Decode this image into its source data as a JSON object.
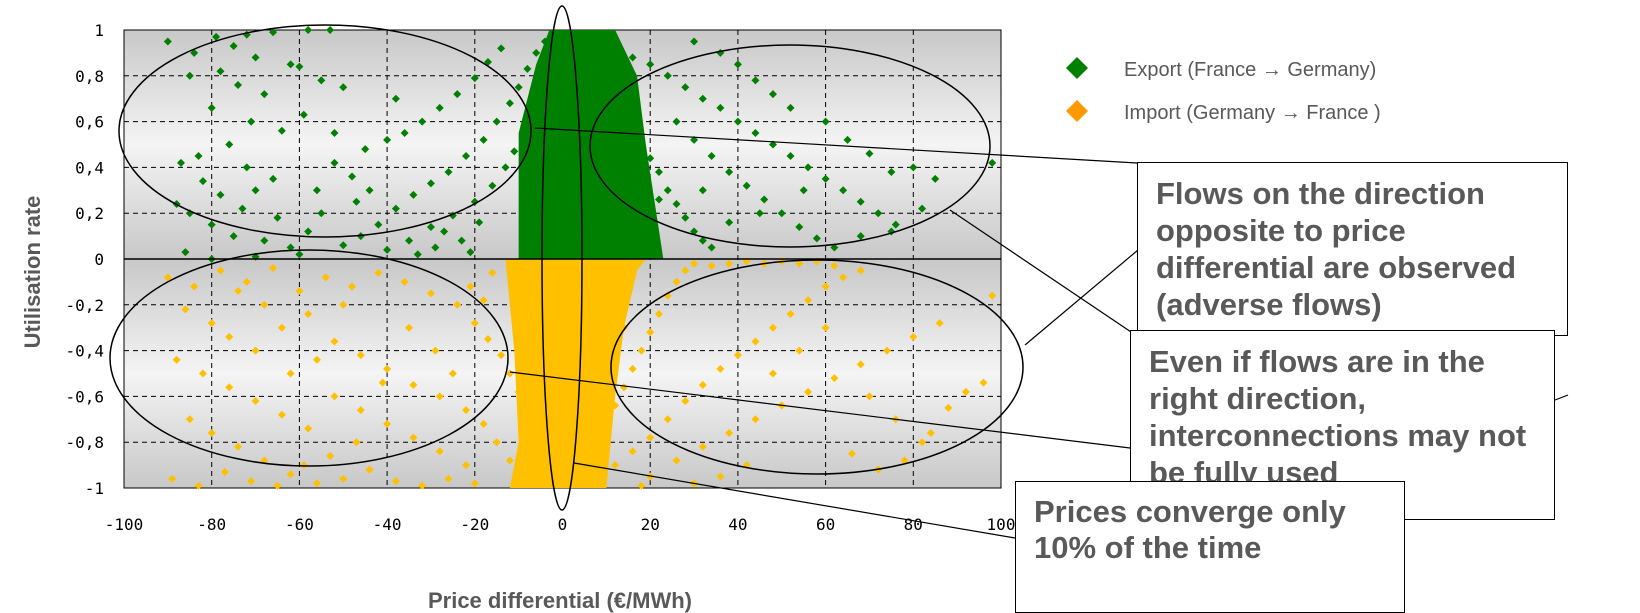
{
  "chart_data": {
    "type": "scatter",
    "title": "",
    "xlabel": "Price differential (€/MWh)",
    "ylabel": "Utilisation rate",
    "xlim": [
      -100,
      100
    ],
    "ylim": [
      -1,
      1
    ],
    "x_ticks": [
      "-100",
      "-80",
      "-60",
      "-40",
      "-20",
      "0",
      "20",
      "40",
      "60",
      "80",
      "100"
    ],
    "y_ticks": [
      "1",
      "0,8",
      "0,6",
      "0,4",
      "0,2",
      "0",
      "-0,2",
      "-0,4",
      "-0,6",
      "-0,8",
      "-1"
    ],
    "grid": true,
    "legend_position": "top-right",
    "series": [
      {
        "name": "Export (France → Germany)",
        "color": "#008000",
        "points": [
          [
            -90,
            0.95
          ],
          [
            -84,
            0.9
          ],
          [
            -79,
            0.97
          ],
          [
            -75,
            0.93
          ],
          [
            -72,
            0.98
          ],
          [
            -66,
            0.99
          ],
          [
            -58,
            1.0
          ],
          [
            -53,
            1.0
          ],
          [
            -70,
            0.88
          ],
          [
            -62,
            0.85
          ],
          [
            -78,
            0.82
          ],
          [
            -85,
            0.8
          ],
          [
            -74,
            0.76
          ],
          [
            -68,
            0.72
          ],
          [
            -60,
            0.84
          ],
          [
            -55,
            0.78
          ],
          [
            -80,
            0.66
          ],
          [
            -71,
            0.6
          ],
          [
            -64,
            0.56
          ],
          [
            -59,
            0.63
          ],
          [
            -76,
            0.5
          ],
          [
            -83,
            0.45
          ],
          [
            -87,
            0.42
          ],
          [
            -72,
            0.4
          ],
          [
            -66,
            0.35
          ],
          [
            -70,
            0.3
          ],
          [
            -78,
            0.28
          ],
          [
            -85,
            0.2
          ],
          [
            -80,
            0.15
          ],
          [
            -75,
            0.1
          ],
          [
            -68,
            0.08
          ],
          [
            -62,
            0.05
          ],
          [
            -58,
            0.12
          ],
          [
            -55,
            0.2
          ],
          [
            -50,
            0.06
          ],
          [
            -46,
            0.1
          ],
          [
            -42,
            0.15
          ],
          [
            -38,
            0.22
          ],
          [
            -34,
            0.28
          ],
          [
            -30,
            0.33
          ],
          [
            -26,
            0.38
          ],
          [
            -22,
            0.45
          ],
          [
            -18,
            0.52
          ],
          [
            -15,
            0.6
          ],
          [
            -12,
            0.68
          ],
          [
            -10,
            0.75
          ],
          [
            -8,
            0.83
          ],
          [
            -6,
            0.9
          ],
          [
            -4,
            0.95
          ],
          [
            -40,
            0.04
          ],
          [
            -35,
            0.08
          ],
          [
            -30,
            0.14
          ],
          [
            -25,
            0.19
          ],
          [
            -20,
            0.25
          ],
          [
            -16,
            0.32
          ],
          [
            -13,
            0.4
          ],
          [
            -11,
            0.47
          ],
          [
            -9,
            0.55
          ],
          [
            -7,
            0.62
          ],
          [
            -44,
            0.3
          ],
          [
            -48,
            0.36
          ],
          [
            -52,
            0.42
          ],
          [
            -36,
            0.55
          ],
          [
            -32,
            0.6
          ],
          [
            -28,
            0.66
          ],
          [
            -24,
            0.72
          ],
          [
            -20,
            0.79
          ],
          [
            -17,
            0.86
          ],
          [
            -14,
            0.92
          ],
          [
            -47,
            0.25
          ],
          [
            -65,
            0.18
          ],
          [
            -73,
            0.22
          ],
          [
            -88,
            0.24
          ],
          [
            -82,
            0.34
          ],
          [
            -56,
            0.3
          ],
          [
            -45,
            0.48
          ],
          [
            -40,
            0.52
          ],
          [
            -27,
            0.12
          ],
          [
            -23,
            0.08
          ],
          [
            -19,
            0.16
          ],
          [
            -33,
            0.02
          ],
          [
            -29,
            0.05
          ],
          [
            -21,
            0.03
          ],
          [
            -60,
            0.02
          ],
          [
            -70,
            0.01
          ],
          [
            -80,
            0.0
          ],
          [
            -86,
            0.03
          ],
          [
            -52,
            0.55
          ],
          [
            -38,
            0.7
          ],
          [
            -50,
            0.75
          ],
          [
            4,
            0.95
          ],
          [
            6,
            0.88
          ],
          [
            8,
            0.82
          ],
          [
            10,
            0.76
          ],
          [
            12,
            0.7
          ],
          [
            14,
            0.64
          ],
          [
            16,
            0.58
          ],
          [
            18,
            0.5
          ],
          [
            20,
            0.44
          ],
          [
            22,
            0.38
          ],
          [
            24,
            0.3
          ],
          [
            26,
            0.24
          ],
          [
            28,
            0.18
          ],
          [
            30,
            0.12
          ],
          [
            32,
            0.08
          ],
          [
            34,
            0.05
          ],
          [
            8,
            0.97
          ],
          [
            12,
            0.92
          ],
          [
            16,
            0.88
          ],
          [
            20,
            0.85
          ],
          [
            24,
            0.8
          ],
          [
            28,
            0.75
          ],
          [
            32,
            0.7
          ],
          [
            36,
            0.66
          ],
          [
            40,
            0.6
          ],
          [
            44,
            0.55
          ],
          [
            48,
            0.5
          ],
          [
            52,
            0.45
          ],
          [
            56,
            0.4
          ],
          [
            60,
            0.35
          ],
          [
            64,
            0.3
          ],
          [
            68,
            0.25
          ],
          [
            72,
            0.2
          ],
          [
            76,
            0.15
          ],
          [
            14,
            0.4
          ],
          [
            18,
            0.32
          ],
          [
            22,
            0.26
          ],
          [
            26,
            0.6
          ],
          [
            30,
            0.52
          ],
          [
            34,
            0.45
          ],
          [
            38,
            0.38
          ],
          [
            42,
            0.32
          ],
          [
            46,
            0.26
          ],
          [
            50,
            0.2
          ],
          [
            54,
            0.14
          ],
          [
            58,
            0.09
          ],
          [
            62,
            0.05
          ],
          [
            40,
            0.85
          ],
          [
            44,
            0.78
          ],
          [
            48,
            0.72
          ],
          [
            52,
            0.66
          ],
          [
            36,
            0.9
          ],
          [
            30,
            0.95
          ],
          [
            60,
            0.6
          ],
          [
            65,
            0.52
          ],
          [
            70,
            0.46
          ],
          [
            75,
            0.38
          ],
          [
            80,
            0.4
          ],
          [
            85,
            0.35
          ],
          [
            98,
            0.42
          ],
          [
            82,
            0.22
          ],
          [
            75,
            0.12
          ],
          [
            68,
            0.1
          ],
          [
            55,
            0.3
          ],
          [
            45,
            0.2
          ],
          [
            38,
            0.16
          ],
          [
            32,
            0.3
          ],
          [
            20,
            0.2
          ],
          [
            16,
            0.12
          ],
          [
            10,
            0.05
          ]
        ]
      },
      {
        "name": "Import (Germany → France )",
        "color": "#FFC000",
        "points": [
          [
            -90,
            -0.08
          ],
          [
            -84,
            -0.12
          ],
          [
            -78,
            -0.05
          ],
          [
            -72,
            -0.1
          ],
          [
            -66,
            -0.04
          ],
          [
            -60,
            -0.14
          ],
          [
            -54,
            -0.08
          ],
          [
            -48,
            -0.12
          ],
          [
            -42,
            -0.06
          ],
          [
            -36,
            -0.1
          ],
          [
            -30,
            -0.15
          ],
          [
            -24,
            -0.2
          ],
          [
            -20,
            -0.28
          ],
          [
            -17,
            -0.35
          ],
          [
            -14,
            -0.42
          ],
          [
            -12,
            -0.5
          ],
          [
            -10,
            -0.58
          ],
          [
            -8,
            -0.66
          ],
          [
            -6,
            -0.74
          ],
          [
            -4,
            -0.82
          ],
          [
            -86,
            -0.22
          ],
          [
            -80,
            -0.28
          ],
          [
            -76,
            -0.34
          ],
          [
            -70,
            -0.4
          ],
          [
            -64,
            -0.3
          ],
          [
            -58,
            -0.24
          ],
          [
            -52,
            -0.36
          ],
          [
            -46,
            -0.42
          ],
          [
            -40,
            -0.48
          ],
          [
            -34,
            -0.55
          ],
          [
            -28,
            -0.6
          ],
          [
            -22,
            -0.66
          ],
          [
            -18,
            -0.72
          ],
          [
            -15,
            -0.8
          ],
          [
            -12,
            -0.88
          ],
          [
            -9,
            -0.95
          ],
          [
            -88,
            -0.44
          ],
          [
            -82,
            -0.5
          ],
          [
            -76,
            -0.56
          ],
          [
            -70,
            -0.62
          ],
          [
            -64,
            -0.68
          ],
          [
            -58,
            -0.74
          ],
          [
            -52,
            -0.6
          ],
          [
            -46,
            -0.66
          ],
          [
            -40,
            -0.72
          ],
          [
            -34,
            -0.78
          ],
          [
            -28,
            -0.84
          ],
          [
            -22,
            -0.9
          ],
          [
            -85,
            -0.7
          ],
          [
            -80,
            -0.76
          ],
          [
            -74,
            -0.82
          ],
          [
            -68,
            -0.88
          ],
          [
            -62,
            -0.94
          ],
          [
            -56,
            -0.98
          ],
          [
            -50,
            -0.96
          ],
          [
            -44,
            -0.92
          ],
          [
            -38,
            -0.97
          ],
          [
            -32,
            -0.99
          ],
          [
            -26,
            -0.96
          ],
          [
            -20,
            -0.98
          ],
          [
            -89,
            -0.96
          ],
          [
            -83,
            -0.99
          ],
          [
            -77,
            -0.93
          ],
          [
            -71,
            -0.97
          ],
          [
            -65,
            -0.99
          ],
          [
            -59,
            -0.9
          ],
          [
            -53,
            -0.86
          ],
          [
            -47,
            -0.8
          ],
          [
            -41,
            -0.54
          ],
          [
            -35,
            -0.3
          ],
          [
            -29,
            -0.4
          ],
          [
            -25,
            -0.5
          ],
          [
            -21,
            -0.12
          ],
          [
            -18,
            -0.18
          ],
          [
            -16,
            -0.06
          ],
          [
            -62,
            -0.5
          ],
          [
            -56,
            -0.44
          ],
          [
            -68,
            -0.2
          ],
          [
            -74,
            -0.14
          ],
          [
            -50,
            -0.2
          ],
          [
            4,
            -0.95
          ],
          [
            6,
            -0.88
          ],
          [
            8,
            -0.8
          ],
          [
            10,
            -0.72
          ],
          [
            12,
            -0.64
          ],
          [
            14,
            -0.56
          ],
          [
            16,
            -0.48
          ],
          [
            18,
            -0.4
          ],
          [
            20,
            -0.32
          ],
          [
            22,
            -0.24
          ],
          [
            24,
            -0.16
          ],
          [
            26,
            -0.1
          ],
          [
            28,
            -0.05
          ],
          [
            30,
            -0.02
          ],
          [
            34,
            -0.03
          ],
          [
            38,
            -0.02
          ],
          [
            42,
            -0.01
          ],
          [
            46,
            -0.02
          ],
          [
            50,
            -0.01
          ],
          [
            54,
            -0.02
          ],
          [
            58,
            -0.01
          ],
          [
            62,
            -0.03
          ],
          [
            12,
            -0.9
          ],
          [
            16,
            -0.84
          ],
          [
            20,
            -0.78
          ],
          [
            24,
            -0.7
          ],
          [
            28,
            -0.62
          ],
          [
            32,
            -0.55
          ],
          [
            36,
            -0.48
          ],
          [
            40,
            -0.42
          ],
          [
            44,
            -0.36
          ],
          [
            48,
            -0.3
          ],
          [
            52,
            -0.24
          ],
          [
            56,
            -0.18
          ],
          [
            60,
            -0.12
          ],
          [
            64,
            -0.08
          ],
          [
            68,
            -0.05
          ],
          [
            20,
            -0.95
          ],
          [
            26,
            -0.88
          ],
          [
            32,
            -0.82
          ],
          [
            38,
            -0.76
          ],
          [
            44,
            -0.7
          ],
          [
            50,
            -0.64
          ],
          [
            56,
            -0.58
          ],
          [
            62,
            -0.52
          ],
          [
            68,
            -0.46
          ],
          [
            74,
            -0.4
          ],
          [
            80,
            -0.34
          ],
          [
            86,
            -0.28
          ],
          [
            98,
            -0.16
          ],
          [
            70,
            -0.6
          ],
          [
            76,
            -0.7
          ],
          [
            82,
            -0.8
          ],
          [
            88,
            -0.65
          ],
          [
            92,
            -0.58
          ],
          [
            96,
            -0.54
          ],
          [
            84,
            -0.76
          ],
          [
            78,
            -0.88
          ],
          [
            72,
            -0.92
          ],
          [
            66,
            -0.85
          ],
          [
            60,
            -0.3
          ],
          [
            54,
            -0.4
          ],
          [
            48,
            -0.5
          ],
          [
            42,
            -0.9
          ],
          [
            36,
            -0.95
          ],
          [
            30,
            -0.98
          ],
          [
            18,
            -0.99
          ],
          [
            14,
            -0.3
          ],
          [
            10,
            -0.2
          ],
          [
            8,
            -0.1
          ]
        ]
      }
    ]
  },
  "callouts": [
    {
      "id": "adverse-flows",
      "text": "Flows on the direction opposite to price differential are observed (adverse flows)"
    },
    {
      "id": "underused",
      "text": "Even if flows are in the right direction, interconnections may not be fully used"
    },
    {
      "id": "convergence",
      "text": "Prices converge only 10% of the time"
    }
  ]
}
